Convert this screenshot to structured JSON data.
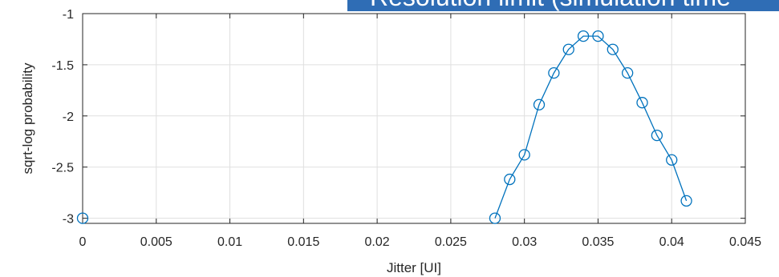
{
  "banner": {
    "text": "Resolution limit (simulation time",
    "color": "#2f6db5"
  },
  "chart_data": {
    "type": "line",
    "title": "",
    "xlabel": "Jitter [UI]",
    "ylabel": "sqrt-log probability",
    "xlim": [
      0,
      0.045
    ],
    "ylim": [
      -3.05,
      -1
    ],
    "xticks": [
      "0",
      "0.005",
      "0.01",
      "0.015",
      "0.02",
      "0.025",
      "0.03",
      "0.035",
      "0.04",
      "0.045"
    ],
    "yticks": [
      "-1",
      "-1.5",
      "-2",
      "-2.5",
      "-3"
    ],
    "grid": true,
    "marker": "circle",
    "color": "#0072bd",
    "x": [
      0,
      0.028,
      0.029,
      0.03,
      0.031,
      0.032,
      0.033,
      0.034,
      0.035,
      0.036,
      0.037,
      0.038,
      0.039,
      0.04,
      0.041
    ],
    "y": [
      -3.0,
      -3.0,
      -2.62,
      -2.38,
      -1.89,
      -1.58,
      -1.35,
      -1.22,
      -1.22,
      -1.35,
      -1.58,
      -1.87,
      -2.19,
      -2.43,
      -2.83
    ],
    "connected_from_index": 1
  }
}
